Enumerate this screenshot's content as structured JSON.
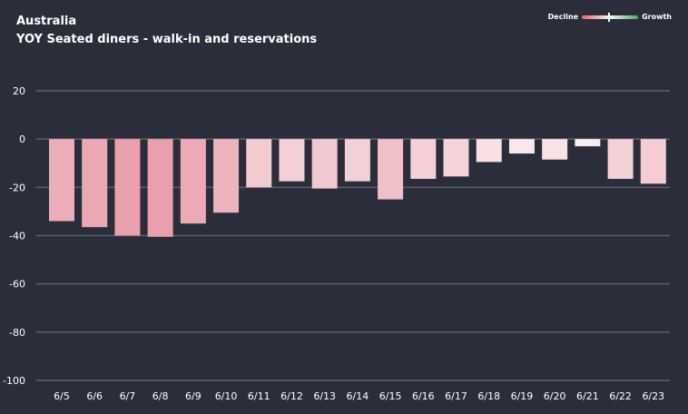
{
  "chart_data": {
    "type": "bar",
    "title": "Australia",
    "subtitle": "YOY Seated diners - walk-in and reservations",
    "legend": {
      "low_label": "Decline",
      "high_label": "Growth",
      "placement": "top-right"
    },
    "categories": [
      "6/5",
      "6/6",
      "6/7",
      "6/8",
      "6/9",
      "6/10",
      "6/11",
      "6/12",
      "6/13",
      "6/14",
      "6/15",
      "6/16",
      "6/17",
      "6/18",
      "6/19",
      "6/20",
      "6/21",
      "6/22",
      "6/23"
    ],
    "values": [
      -34,
      -36.5,
      -40,
      -40.5,
      -35,
      -30.5,
      -20,
      -17.5,
      -20.5,
      -17.5,
      -25,
      -16.5,
      -15.5,
      -9.5,
      -6,
      -8.5,
      -3,
      -16.5,
      -18.5
    ],
    "ylim": [
      -100,
      20
    ],
    "yticks": [
      20,
      0,
      -20,
      -40,
      -60,
      -80,
      -100
    ],
    "grid": true,
    "colors": {
      "background": "#2b2e3a",
      "grid": "#5c606c",
      "decline": "#e8a0ac",
      "neutral": "#fdf3f4",
      "growth": "#4ea86a"
    }
  }
}
